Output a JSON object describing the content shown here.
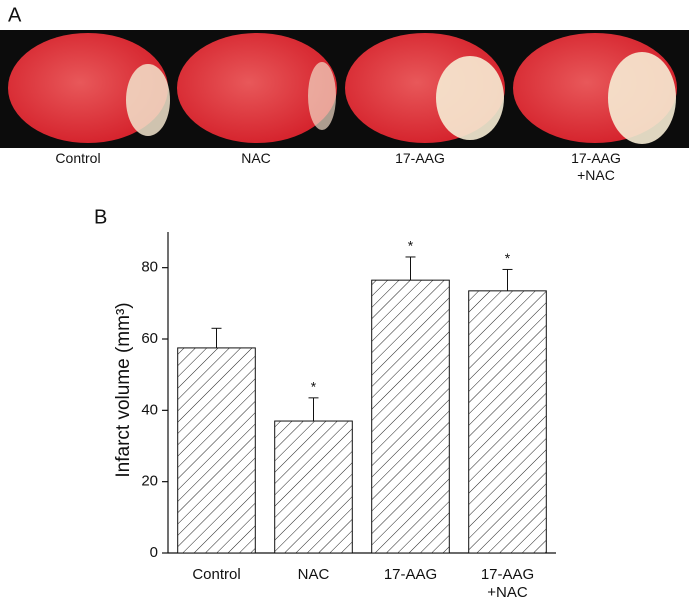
{
  "panel_a": {
    "label": "A",
    "captions": [
      "Control",
      "NAC",
      "17-AAG",
      "17-AAG\n+NAC"
    ]
  },
  "chart_data": {
    "type": "bar",
    "panel_label": "B",
    "ylabel": "Infarct volume (mm³)",
    "categories": [
      "Control",
      "NAC",
      "17-AAG",
      "17-AAG\n+NAC"
    ],
    "values": [
      57.5,
      37,
      76.5,
      73.5
    ],
    "errors": [
      5.5,
      6.5,
      6.5,
      6
    ],
    "markers": [
      null,
      "*",
      "*",
      "*"
    ],
    "color": "#ffffff",
    "hatch": true,
    "ylim": [
      0,
      90
    ],
    "yticks": [
      0,
      20,
      40,
      60,
      80
    ]
  }
}
